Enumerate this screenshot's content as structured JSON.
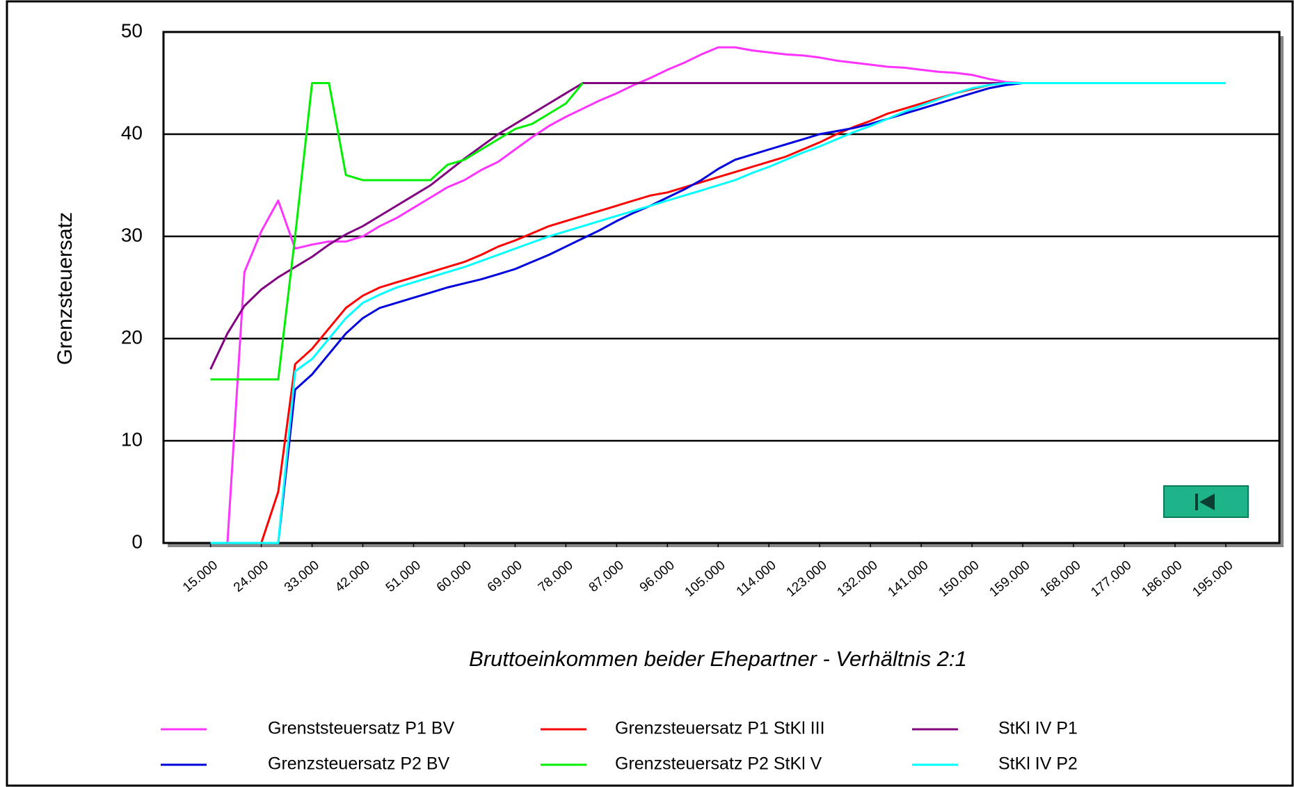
{
  "chart_data": {
    "type": "line",
    "xlabel": "Bruttoeinkommen beider Ehepartner - Verhältnis  2:1",
    "ylabel": "Grenzsteuersatz",
    "x": [
      15000,
      18000,
      21000,
      24000,
      27000,
      30000,
      33000,
      36000,
      39000,
      42000,
      45000,
      48000,
      51000,
      54000,
      57000,
      60000,
      63000,
      66000,
      69000,
      72000,
      75000,
      78000,
      81000,
      84000,
      87000,
      90000,
      93000,
      96000,
      99000,
      102000,
      105000,
      108000,
      111000,
      114000,
      117000,
      120000,
      123000,
      126000,
      129000,
      132000,
      135000,
      138000,
      141000,
      144000,
      147000,
      150000,
      153000,
      156000,
      159000,
      162000,
      165000,
      168000,
      171000,
      174000,
      177000,
      180000,
      183000,
      186000,
      189000,
      192000,
      195000
    ],
    "series": [
      {
        "name": "Grenststeuersatz P1 BV",
        "color": "#ff33ff",
        "values": [
          0,
          0,
          26.5,
          30.5,
          33.5,
          28.8,
          29.2,
          29.5,
          29.5,
          30,
          31,
          31.8,
          32.8,
          33.8,
          34.8,
          35.5,
          36.5,
          37.3,
          38.5,
          39.7,
          40.8,
          41.7,
          42.5,
          43.3,
          44,
          44.8,
          45.5,
          46.3,
          47,
          47.8,
          48.5,
          48.5,
          48.2,
          48,
          47.8,
          47.7,
          47.5,
          47.2,
          47,
          46.8,
          46.6,
          46.5,
          46.3,
          46.1,
          46,
          45.8,
          45.4,
          45.1,
          45,
          null,
          null,
          null,
          null,
          null,
          null,
          null,
          null,
          null,
          null,
          null,
          null
        ]
      },
      {
        "name": "Grenzsteuersatz P1 StKl III",
        "color": "#ff0000",
        "values": [
          0,
          0,
          0,
          0,
          5,
          17.5,
          19,
          21,
          23,
          24.2,
          25,
          25.5,
          26,
          26.5,
          27,
          27.5,
          28.2,
          29,
          29.6,
          30.3,
          31,
          31.5,
          32,
          32.5,
          33,
          33.5,
          34,
          34.3,
          34.8,
          35.3,
          35.8,
          36.3,
          36.8,
          37.3,
          37.8,
          38.5,
          39.2,
          40,
          40.7,
          41.3,
          42,
          42.5,
          43,
          43.5,
          44,
          44.4,
          44.8,
          45,
          45,
          null,
          null,
          null,
          null,
          null,
          null,
          null,
          null,
          null,
          null,
          null,
          null
        ]
      },
      {
        "name": "StKl IV P1",
        "color": "#800080",
        "values": [
          17,
          20.5,
          23.2,
          24.8,
          26,
          27,
          28,
          29.2,
          30.2,
          31,
          32,
          33,
          34,
          35,
          36.3,
          37.6,
          38.8,
          40,
          41,
          42,
          43,
          44,
          45,
          45,
          45,
          45,
          45,
          45,
          45,
          45,
          45,
          45,
          45,
          45,
          45,
          45,
          45,
          45,
          45,
          45,
          45,
          45,
          45,
          45,
          45,
          45,
          45,
          45,
          45,
          null,
          null,
          null,
          null,
          null,
          null,
          null,
          null,
          null,
          null,
          null,
          null
        ]
      },
      {
        "name": "Grenzsteuersatz P2 BV",
        "color": "#0000dd",
        "values": [
          0,
          0,
          0,
          0,
          0,
          15,
          16.5,
          18.5,
          20.5,
          22,
          23,
          23.5,
          24,
          24.5,
          25,
          25.4,
          25.8,
          26.3,
          26.8,
          27.5,
          28.2,
          29,
          29.8,
          30.6,
          31.5,
          32.3,
          33,
          33.8,
          34.6,
          35.5,
          36.6,
          37.5,
          38,
          38.5,
          39,
          39.5,
          40,
          40.3,
          40.6,
          41,
          41.5,
          42,
          42.5,
          43,
          43.5,
          44,
          44.5,
          44.8,
          45,
          45,
          null,
          null,
          null,
          null,
          null,
          null,
          null,
          null,
          null,
          null,
          null
        ]
      },
      {
        "name": "Grenzsteuersatz P2 StKl V",
        "color": "#00ee00",
        "values": [
          16,
          16,
          16,
          16,
          16,
          30,
          45,
          45,
          36,
          35.5,
          35.5,
          35.5,
          35.5,
          35.5,
          37,
          37.5,
          38.5,
          39.5,
          40.5,
          41,
          42,
          43,
          45,
          null,
          null,
          null,
          null,
          null,
          null,
          null,
          null,
          null,
          null,
          null,
          null,
          null,
          null,
          null,
          null,
          null,
          null,
          null,
          null,
          null,
          null,
          null,
          null,
          null,
          null,
          null,
          null,
          null,
          null,
          null,
          null,
          null,
          null,
          null,
          null,
          null,
          null
        ]
      },
      {
        "name": "StKl IV P2",
        "color": "#00ffff",
        "values": [
          0,
          0,
          0,
          0,
          0,
          16.8,
          18,
          20,
          22,
          23.5,
          24.3,
          25,
          25.5,
          26,
          26.5,
          27,
          27.6,
          28.2,
          28.8,
          29.4,
          30,
          30.5,
          31,
          31.5,
          32,
          32.5,
          33,
          33.5,
          34,
          34.5,
          35,
          35.5,
          36.2,
          36.8,
          37.5,
          38.2,
          38.8,
          39.5,
          40.2,
          40.8,
          41.5,
          42.2,
          42.8,
          43.4,
          44,
          44.5,
          44.8,
          45,
          45,
          45,
          45,
          45,
          45,
          45,
          45,
          45,
          45,
          45,
          45,
          45,
          45
        ]
      }
    ],
    "xlim": [
      6660,
      204500
    ],
    "xticks": [
      {
        "value": 15000,
        "label": "15.000"
      },
      {
        "value": 24000,
        "label": "24.000"
      },
      {
        "value": 33000,
        "label": "33.000"
      },
      {
        "value": 42000,
        "label": "42.000"
      },
      {
        "value": 51000,
        "label": "51.000"
      },
      {
        "value": 60000,
        "label": "60.000"
      },
      {
        "value": 69000,
        "label": "69.000"
      },
      {
        "value": 78000,
        "label": "78.000"
      },
      {
        "value": 87000,
        "label": "87.000"
      },
      {
        "value": 96000,
        "label": "96.000"
      },
      {
        "value": 105000,
        "label": "105.000"
      },
      {
        "value": 114000,
        "label": "114.000"
      },
      {
        "value": 123000,
        "label": "123.000"
      },
      {
        "value": 132000,
        "label": "132.000"
      },
      {
        "value": 141000,
        "label": "141.000"
      },
      {
        "value": 150000,
        "label": "150.000"
      },
      {
        "value": 159000,
        "label": "159.000"
      },
      {
        "value": 168000,
        "label": "168.000"
      },
      {
        "value": 177000,
        "label": "177.000"
      },
      {
        "value": 186000,
        "label": "186.000"
      },
      {
        "value": 195000,
        "label": "195.000"
      }
    ],
    "ylim": [
      0,
      50
    ],
    "yticks": [
      0,
      10,
      20,
      30,
      40,
      50
    ],
    "grid": true
  }
}
